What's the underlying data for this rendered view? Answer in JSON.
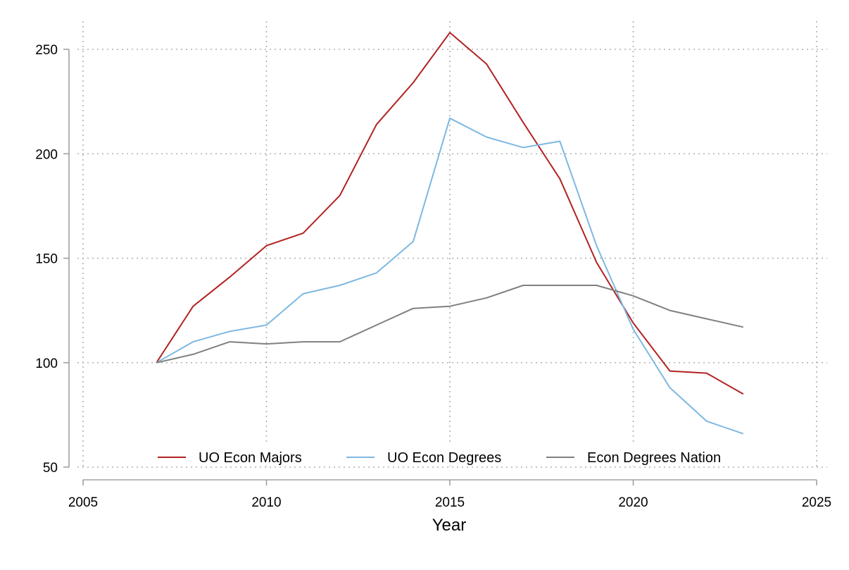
{
  "chart_data": {
    "type": "line",
    "xlabel": "Year",
    "ylabel": "",
    "xlim": [
      2005,
      2025
    ],
    "ylim": [
      50,
      260
    ],
    "xticks": [
      2005,
      2010,
      2015,
      2020,
      2025
    ],
    "yticks": [
      50,
      100,
      150,
      200,
      250
    ],
    "grid": true,
    "legend_position": "bottom",
    "x": [
      2007,
      2008,
      2009,
      2010,
      2011,
      2012,
      2013,
      2014,
      2015,
      2016,
      2017,
      2018,
      2019,
      2020,
      2021,
      2022,
      2023
    ],
    "series": [
      {
        "name": "UO Econ Majors",
        "color": "#b22222",
        "values": [
          100,
          127,
          141,
          156,
          162,
          180,
          214,
          234,
          258,
          243,
          215,
          188,
          148,
          119,
          96,
          95,
          85
        ]
      },
      {
        "name": "UO Econ Degrees",
        "color": "#7eb8e0",
        "values": [
          100,
          110,
          115,
          118,
          133,
          137,
          143,
          158,
          217,
          208,
          203,
          206,
          156,
          116,
          88,
          72,
          66
        ]
      },
      {
        "name": "Econ Degrees Nation",
        "color": "#808080",
        "values": [
          100,
          104,
          110,
          109,
          110,
          110,
          118,
          126,
          127,
          131,
          137,
          137,
          137,
          132,
          125,
          121,
          117
        ]
      }
    ]
  }
}
